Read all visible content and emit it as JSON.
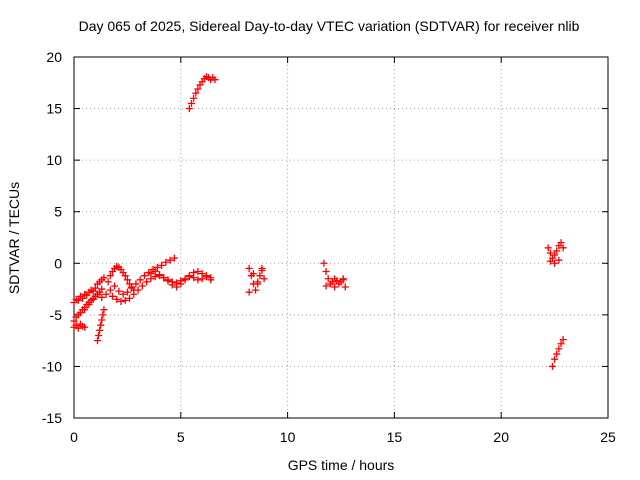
{
  "chart_data": {
    "type": "scatter",
    "title": "Day 065 of 2025, Sidereal Day-to-day VTEC variation (SDTVAR) for receiver nlib",
    "xlabel": "GPS time / hours",
    "ylabel": "SDTVAR / TECUs",
    "xlim": [
      0,
      25
    ],
    "ylim": [
      -15,
      20
    ],
    "xticks": [
      0,
      5,
      10,
      15,
      20,
      25
    ],
    "yticks": [
      -15,
      -10,
      -5,
      0,
      5,
      10,
      15,
      20
    ],
    "grid": true,
    "marker": "+",
    "color": "#ff0000",
    "segments": [
      {
        "x": [
          0.0,
          0.1,
          0.2,
          0.3,
          0.4,
          0.5,
          0.6,
          0.7,
          0.8,
          0.9,
          1.0,
          1.1,
          1.2,
          1.3,
          1.4
        ],
        "y": [
          -3.8,
          -3.5,
          -3.6,
          -3.2,
          -3.4,
          -3.0,
          -3.1,
          -2.8,
          -2.6,
          -2.7,
          -2.4,
          -2.0,
          -1.8,
          -1.6,
          -1.4
        ]
      },
      {
        "x": [
          0.0,
          0.1,
          0.2,
          0.3,
          0.4,
          0.5,
          0.6,
          0.7,
          0.8,
          0.9,
          1.0,
          1.1,
          1.2,
          1.3
        ],
        "y": [
          -5.6,
          -5.2,
          -5.0,
          -4.8,
          -4.5,
          -4.3,
          -4.0,
          -3.8,
          -3.6,
          -3.4,
          -3.2,
          -3.0,
          -2.8,
          -2.5
        ]
      },
      {
        "x": [
          0.0,
          0.1,
          0.2,
          0.3,
          0.4,
          0.5
        ],
        "y": [
          -6.2,
          -6.0,
          -6.3,
          -5.9,
          -6.1,
          -6.2
        ]
      },
      {
        "x": [
          1.1,
          1.15,
          1.2,
          1.25,
          1.3,
          1.35,
          1.4
        ],
        "y": [
          -7.5,
          -7.0,
          -6.5,
          -6.0,
          -5.5,
          -5.0,
          -4.5
        ]
      },
      {
        "x": [
          0.5,
          0.7,
          0.9,
          1.1,
          1.3,
          1.5,
          1.7,
          1.9,
          2.1,
          2.3,
          2.5,
          2.7,
          2.9,
          3.1,
          3.3,
          3.5,
          3.7,
          3.9,
          4.1,
          4.3,
          4.5,
          4.7
        ],
        "y": [
          -4.5,
          -4.0,
          -3.5,
          -3.0,
          -3.3,
          -3.0,
          -2.6,
          -2.2,
          -2.7,
          -3.0,
          -2.8,
          -2.4,
          -2.0,
          -1.6,
          -1.2,
          -0.9,
          -0.6,
          -0.4,
          -0.2,
          0.1,
          0.3,
          0.5
        ]
      },
      {
        "x": [
          1.6,
          1.7,
          1.8,
          1.9,
          2.0,
          2.1,
          2.2,
          2.3,
          2.4,
          2.5,
          2.6,
          2.7,
          2.8
        ],
        "y": [
          -1.8,
          -1.2,
          -0.8,
          -0.5,
          -0.3,
          -0.4,
          -0.6,
          -0.9,
          -1.2,
          -1.6,
          -2.0,
          -2.3,
          -2.6
        ]
      },
      {
        "x": [
          1.8,
          2.0,
          2.2,
          2.4,
          2.6,
          2.8,
          3.0,
          3.2,
          3.4,
          3.6,
          3.8,
          4.0,
          4.2,
          4.4,
          4.6,
          4.8,
          5.0,
          5.2,
          5.4,
          5.6,
          5.8,
          6.0,
          6.2,
          6.4
        ],
        "y": [
          -3.2,
          -3.5,
          -3.7,
          -3.6,
          -3.4,
          -3.0,
          -2.6,
          -2.2,
          -1.8,
          -1.5,
          -1.3,
          -1.2,
          -1.4,
          -1.6,
          -1.8,
          -1.9,
          -1.7,
          -1.5,
          -1.3,
          -1.4,
          -1.6,
          -1.5,
          -1.3,
          -1.6
        ]
      },
      {
        "x": [
          3.6,
          3.8,
          4.0,
          4.2,
          4.4,
          4.6,
          4.8,
          5.0,
          5.2,
          5.4,
          5.6,
          5.8,
          6.0,
          6.2,
          6.4
        ],
        "y": [
          -1.0,
          -0.8,
          -1.1,
          -1.4,
          -1.7,
          -2.1,
          -2.3,
          -2.0,
          -1.6,
          -1.2,
          -0.9,
          -0.8,
          -1.0,
          -1.2,
          -1.4
        ]
      },
      {
        "x": [
          5.4,
          5.5,
          5.6,
          5.7,
          5.8,
          5.9,
          6.0,
          6.1,
          6.2,
          6.3,
          6.4,
          6.5,
          6.6
        ],
        "y": [
          15.0,
          15.5,
          16.0,
          16.5,
          16.9,
          17.3,
          17.6,
          17.9,
          18.1,
          18.0,
          17.8,
          18.0,
          17.8
        ]
      },
      {
        "x": [
          8.2,
          8.3,
          8.4,
          8.5,
          8.6,
          8.7,
          8.8,
          8.9,
          8.2,
          8.4,
          8.6,
          8.8
        ],
        "y": [
          -0.5,
          -1.2,
          -2.0,
          -2.6,
          -2.0,
          -1.2,
          -0.7,
          -1.5,
          -2.8,
          -1.0,
          -1.8,
          -0.5
        ]
      },
      {
        "x": [
          11.7,
          11.8,
          11.9,
          12.0,
          12.1,
          12.2,
          12.3,
          12.4,
          12.5,
          12.6,
          12.7,
          11.8,
          12.2,
          12.6
        ],
        "y": [
          0.0,
          -0.8,
          -1.5,
          -2.0,
          -1.8,
          -1.5,
          -1.7,
          -2.0,
          -1.8,
          -1.6,
          -2.3,
          -2.2,
          -2.3,
          -1.5
        ]
      },
      {
        "x": [
          22.2,
          22.3,
          22.4,
          22.5,
          22.6,
          22.7,
          22.8,
          22.9,
          22.3,
          22.5,
          22.7
        ],
        "y": [
          1.5,
          1.0,
          0.5,
          0.8,
          1.2,
          1.7,
          2.0,
          1.5,
          0.2,
          0.0,
          0.3
        ]
      },
      {
        "x": [
          22.4,
          22.5,
          22.6,
          22.7,
          22.8,
          22.9
        ],
        "y": [
          -10.0,
          -9.3,
          -8.8,
          -8.3,
          -7.8,
          -7.4
        ]
      }
    ]
  }
}
